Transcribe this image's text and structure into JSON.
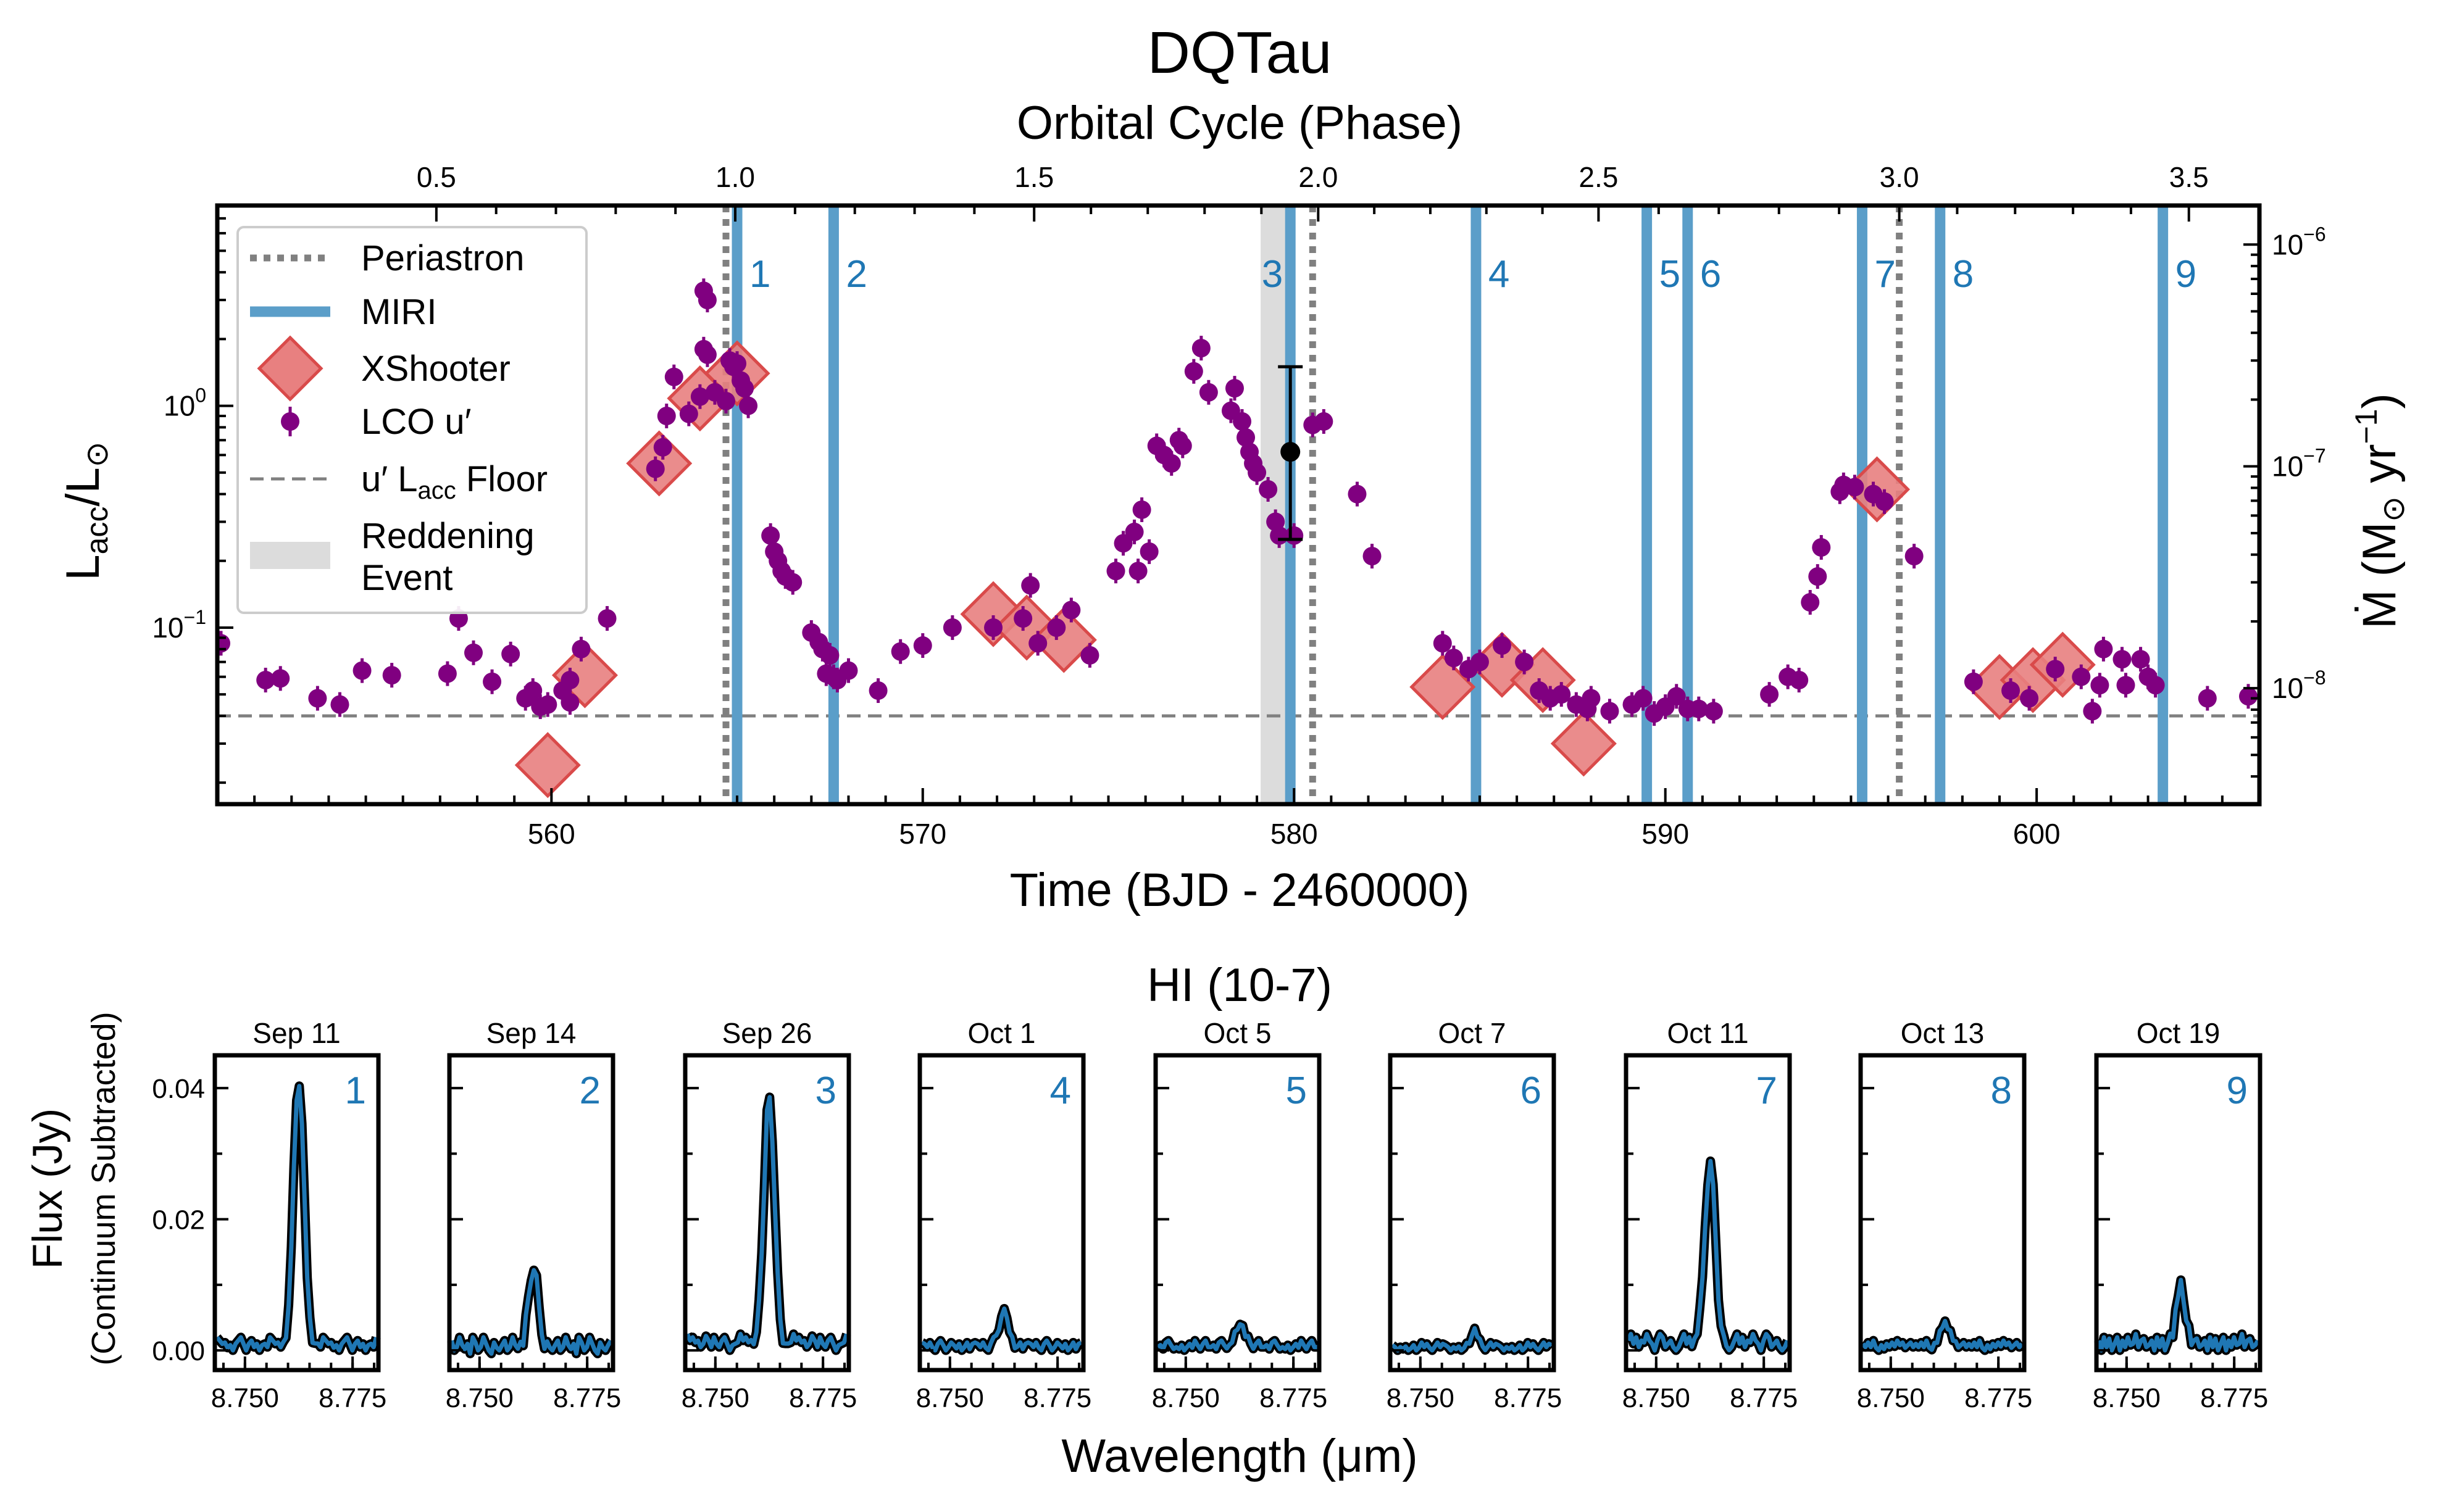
{
  "figure": {
    "title": "DQTau",
    "top_axis_label": "Orbital Cycle (Phase)",
    "bottom_axis_label": "Time (BJD - 2460000)",
    "left_axis_label_main": "L",
    "left_axis_label_sub1": "acc",
    "left_axis_label_mid": "/L",
    "left_axis_label_sub2": "⊙",
    "right_axis_label": "Ṁ (M⊙ yr−1)",
    "right_axis_label_parts": [
      "Ṁ (M",
      "⊙",
      " yr",
      "−1",
      ")"
    ],
    "lower_title": "HI (10-7)",
    "lower_ylabel": "Flux (Jy)",
    "lower_ylabel_sub": "(Continuum Subtracted)",
    "lower_xlabel": "Wavelength (μm)"
  },
  "colors": {
    "lco": "#800080",
    "xshooter_fill": "#e88080",
    "xshooter_edge": "#d94a4a",
    "miri": "#5b9ec9",
    "miri_text": "#1f77b4",
    "periastron": "#808080",
    "floor": "#808080",
    "reddening": "#dcdcdc",
    "spectrum_outline": "#000000",
    "spectrum_line": "#1f77b4"
  },
  "legend": {
    "placement": "upper-left",
    "entries": [
      {
        "id": "periastron",
        "label": "Periastron"
      },
      {
        "id": "miri",
        "label": "MIRI"
      },
      {
        "id": "xshooter",
        "label": "XShooter"
      },
      {
        "id": "lco",
        "label": "LCO u′"
      },
      {
        "id": "floor",
        "label": "u′ L",
        "label_sub": "acc",
        "label_tail": " Floor"
      },
      {
        "id": "reddening",
        "label": "Reddening",
        "label2": "Event"
      }
    ]
  },
  "chart_data": [
    {
      "type": "scatter",
      "title": "DQTau",
      "xlabel": "Time (BJD - 2460000)",
      "ylabel": "Lacc/L⊙",
      "y2label": "Ṁ (M⊙ yr−1)",
      "x2label": "Orbital Cycle (Phase)",
      "xlim": [
        551,
        606
      ],
      "ylim": [
        0.016,
        8
      ],
      "yscale": "log",
      "y2lim": [
        3e-09,
        1.5e-06
      ],
      "y2scale": "log",
      "xticks": [
        560,
        570,
        580,
        590,
        600
      ],
      "yticks": [
        {
          "v": 0.1,
          "label": "10",
          "exp": "−1"
        },
        {
          "v": 1,
          "label": "10",
          "exp": "0"
        }
      ],
      "y2ticks": [
        {
          "v": 1e-08,
          "label": "10",
          "exp": "−8"
        },
        {
          "v": 1e-07,
          "label": "10",
          "exp": "−7"
        },
        {
          "v": 1e-06,
          "label": "10",
          "exp": "−6"
        }
      ],
      "x2ticks": [
        {
          "t": 556.9,
          "label": "0.5"
        },
        {
          "t": 564.95,
          "label": "1.0"
        },
        {
          "t": 573.0,
          "label": "1.5"
        },
        {
          "t": 580.65,
          "label": "2.0"
        },
        {
          "t": 588.2,
          "label": "2.5"
        },
        {
          "t": 596.3,
          "label": "3.0"
        },
        {
          "t": 604.1,
          "label": "3.5"
        }
      ],
      "periastron_times": [
        564.7,
        580.5,
        596.3
      ],
      "miri_epochs": [
        {
          "label": "1",
          "t": 565.0
        },
        {
          "label": "2",
          "t": 567.6
        },
        {
          "label": "3",
          "t": 579.9
        },
        {
          "label": "4",
          "t": 584.9
        },
        {
          "label": "5",
          "t": 589.5
        },
        {
          "label": "6",
          "t": 590.6
        },
        {
          "label": "7",
          "t": 595.3
        },
        {
          "label": "8",
          "t": 597.4
        },
        {
          "label": "9",
          "t": 603.4
        }
      ],
      "reddening_event": [
        579.1,
        579.9
      ],
      "lacc_floor": 0.04,
      "xshooter": [
        [
          559.9,
          0.024
        ],
        [
          560.9,
          0.061
        ],
        [
          562.9,
          0.55
        ],
        [
          564.0,
          1.08
        ],
        [
          565.0,
          1.4
        ],
        [
          571.9,
          0.115
        ],
        [
          572.8,
          0.1
        ],
        [
          573.8,
          0.088
        ],
        [
          584.0,
          0.054
        ],
        [
          585.6,
          0.068
        ],
        [
          586.7,
          0.058
        ],
        [
          587.8,
          0.03
        ],
        [
          595.7,
          0.42
        ],
        [
          599.0,
          0.054
        ],
        [
          599.9,
          0.058
        ],
        [
          600.7,
          0.068
        ]
      ],
      "lco": [
        [
          551.1,
          0.085
        ],
        [
          552.3,
          0.058
        ],
        [
          552.7,
          0.059
        ],
        [
          553.7,
          0.048
        ],
        [
          554.3,
          0.045
        ],
        [
          554.9,
          0.064
        ],
        [
          555.7,
          0.061
        ],
        [
          557.2,
          0.062
        ],
        [
          557.5,
          0.11
        ],
        [
          557.9,
          0.077
        ],
        [
          558.4,
          0.057
        ],
        [
          558.9,
          0.076
        ],
        [
          559.3,
          0.048
        ],
        [
          559.5,
          0.052
        ],
        [
          559.7,
          0.044
        ],
        [
          559.9,
          0.045
        ],
        [
          560.3,
          0.052
        ],
        [
          560.5,
          0.058
        ],
        [
          560.5,
          0.046
        ],
        [
          560.8,
          0.08
        ],
        [
          561.5,
          0.11
        ],
        [
          562.8,
          0.52
        ],
        [
          563.0,
          0.65
        ],
        [
          563.1,
          0.9
        ],
        [
          563.3,
          1.35
        ],
        [
          563.7,
          0.92
        ],
        [
          564.0,
          1.1
        ],
        [
          564.1,
          3.3
        ],
        [
          564.1,
          1.8
        ],
        [
          564.2,
          3.0
        ],
        [
          564.2,
          1.7
        ],
        [
          564.4,
          1.15
        ],
        [
          564.7,
          1.05
        ],
        [
          564.8,
          1.6
        ],
        [
          564.9,
          1.5
        ],
        [
          565.0,
          1.55
        ],
        [
          565.1,
          1.3
        ],
        [
          565.2,
          1.2
        ],
        [
          565.3,
          1.0
        ],
        [
          565.9,
          0.26
        ],
        [
          566.0,
          0.22
        ],
        [
          566.1,
          0.2
        ],
        [
          566.2,
          0.18
        ],
        [
          566.3,
          0.17
        ],
        [
          566.5,
          0.16
        ],
        [
          567.0,
          0.095
        ],
        [
          567.2,
          0.086
        ],
        [
          567.3,
          0.08
        ],
        [
          567.5,
          0.075
        ],
        [
          567.4,
          0.062
        ],
        [
          567.6,
          0.06
        ],
        [
          567.7,
          0.058
        ],
        [
          568.0,
          0.064
        ],
        [
          568.8,
          0.052
        ],
        [
          569.4,
          0.078
        ],
        [
          570.0,
          0.083
        ],
        [
          570.8,
          0.1
        ],
        [
          571.9,
          0.1
        ],
        [
          572.7,
          0.11
        ],
        [
          572.9,
          0.155
        ],
        [
          573.1,
          0.085
        ],
        [
          573.6,
          0.1
        ],
        [
          574.0,
          0.12
        ],
        [
          574.5,
          0.075
        ],
        [
          575.2,
          0.18
        ],
        [
          575.4,
          0.24
        ],
        [
          575.7,
          0.27
        ],
        [
          575.9,
          0.34
        ],
        [
          576.1,
          0.22
        ],
        [
          575.8,
          0.18
        ],
        [
          576.3,
          0.66
        ],
        [
          576.5,
          0.6
        ],
        [
          576.7,
          0.55
        ],
        [
          576.9,
          0.7
        ],
        [
          577.0,
          0.66
        ],
        [
          577.3,
          1.43
        ],
        [
          577.5,
          1.82
        ],
        [
          577.7,
          1.15
        ],
        [
          578.4,
          1.2
        ],
        [
          578.3,
          0.95
        ],
        [
          578.6,
          0.85
        ],
        [
          578.7,
          0.72
        ],
        [
          578.8,
          0.62
        ],
        [
          578.9,
          0.55
        ],
        [
          579.0,
          0.5
        ],
        [
          579.3,
          0.42
        ],
        [
          579.5,
          0.3
        ],
        [
          579.6,
          0.26
        ],
        [
          580.0,
          0.26
        ],
        [
          580.5,
          0.82
        ],
        [
          580.8,
          0.85
        ],
        [
          581.7,
          0.4
        ],
        [
          582.1,
          0.21
        ],
        [
          584.0,
          0.085
        ],
        [
          584.3,
          0.073
        ],
        [
          584.7,
          0.065
        ],
        [
          585.0,
          0.07
        ],
        [
          585.6,
          0.083
        ],
        [
          586.2,
          0.07
        ],
        [
          586.6,
          0.052
        ],
        [
          586.9,
          0.048
        ],
        [
          587.2,
          0.05
        ],
        [
          587.6,
          0.045
        ],
        [
          587.9,
          0.043
        ],
        [
          588.0,
          0.048
        ],
        [
          588.5,
          0.042
        ],
        [
          589.1,
          0.045
        ],
        [
          589.4,
          0.048
        ],
        [
          589.7,
          0.041
        ],
        [
          590.0,
          0.044
        ],
        [
          590.3,
          0.049
        ],
        [
          590.6,
          0.043
        ],
        [
          590.9,
          0.043
        ],
        [
          591.3,
          0.042
        ],
        [
          592.8,
          0.05
        ],
        [
          593.3,
          0.06
        ],
        [
          593.6,
          0.058
        ],
        [
          593.9,
          0.13
        ],
        [
          594.1,
          0.17
        ],
        [
          594.2,
          0.23
        ],
        [
          594.7,
          0.41
        ],
        [
          594.8,
          0.44
        ],
        [
          595.1,
          0.43
        ],
        [
          595.6,
          0.4
        ],
        [
          595.9,
          0.37
        ],
        [
          596.7,
          0.21
        ],
        [
          598.3,
          0.057
        ],
        [
          599.3,
          0.052
        ],
        [
          599.8,
          0.048
        ],
        [
          600.5,
          0.065
        ],
        [
          601.2,
          0.06
        ],
        [
          601.5,
          0.042
        ],
        [
          601.7,
          0.055
        ],
        [
          601.8,
          0.08
        ],
        [
          602.3,
          0.072
        ],
        [
          602.4,
          0.055
        ],
        [
          602.8,
          0.072
        ],
        [
          603.0,
          0.06
        ],
        [
          603.2,
          0.055
        ],
        [
          604.6,
          0.048
        ],
        [
          605.7,
          0.049
        ]
      ],
      "black_point": {
        "t": 579.9,
        "y": 0.62,
        "ylo": 0.25,
        "yhi": 1.5
      }
    },
    {
      "type": "line",
      "title": "HI (10-7)",
      "xlabel": "Wavelength (μm)",
      "ylabel": "Flux (Jy)",
      "xlim": [
        8.743,
        8.781
      ],
      "ylim": [
        -0.003,
        0.045
      ],
      "xticks": [
        {
          "v": 8.75,
          "label": "8.750"
        },
        {
          "v": 8.775,
          "label": "8.775"
        }
      ],
      "yticks": [
        {
          "v": 0.0,
          "label": "0.00"
        },
        {
          "v": 0.02,
          "label": "0.02"
        },
        {
          "v": 0.04,
          "label": "0.04"
        }
      ],
      "line_center": 8.7625,
      "panels": [
        {
          "date": "Sep 11",
          "label": "1",
          "peak": 0.0405,
          "width": 0.0012,
          "noise": [
            0.002,
            0.0015,
            0.001,
            0.0012,
            0.0004,
            0.0008,
            0.0,
            0.001,
            0.0015,
            0.002,
            0.001,
            0.0,
            0.001,
            0.0015,
            0.0005,
            0.001,
            0.0,
            0.0008,
            0.001,
            0.0005
          ]
        },
        {
          "date": "Sep 14",
          "label": "2",
          "peak": 0.0118,
          "width": 0.0011,
          "noise": [
            0.0015,
            0.0,
            0.0005,
            0.002,
            0.0008,
            0.0002,
            0.001,
            -0.0005,
            0.002,
            0.0012,
            0.0,
            0.0005,
            0.002,
            0.001,
            0.0,
            -0.0005,
            0.0012,
            0.0004,
            0.0,
            0.0008
          ]
        },
        {
          "date": "Sep 26",
          "label": "3",
          "peak": 0.0378,
          "width": 0.0012,
          "noise": [
            0.0025,
            0.0015,
            0.002,
            0.0012,
            0.0015,
            0.0005,
            0.001,
            0.0022,
            0.0015,
            0.0005,
            0.002,
            0.001,
            0.0005,
            0.0015,
            0.002,
            0.001,
            0.0,
            0.0008,
            0.001,
            0.0012
          ]
        },
        {
          "date": "Oct 1",
          "label": "4",
          "peak": 0.0052,
          "width": 0.0011,
          "noise": [
            0.0012,
            0.001,
            0.0005,
            0.0012,
            0.0004,
            0.0,
            0.001,
            0.0015,
            0.0008,
            0.0,
            0.0005,
            0.0012,
            0.0008,
            0.0003,
            0.001,
            0.0,
            0.0005,
            0.0012,
            0.0002,
            0.001
          ]
        },
        {
          "date": "Oct 5",
          "label": "5",
          "peak": 0.0035,
          "width": 0.0011,
          "noise": [
            0.0005,
            0.0008,
            0.0002,
            0.0012,
            0.0015,
            0.0008,
            0.0002,
            0.0005,
            0.0002,
            0.0008,
            0.0,
            0.0005,
            0.001,
            0.0004,
            0.0015,
            0.0008,
            0.0002,
            0.001,
            0.0015,
            0.0005
          ]
        },
        {
          "date": "Oct 7",
          "label": "6",
          "peak": 0.0022,
          "width": 0.0009,
          "noise": [
            0.0008,
            0.0005,
            0.0,
            0.0005,
            0.0002,
            0.0006,
            0.0,
            0.0003,
            0.0008,
            0.0,
            0.0004,
            0.0012,
            0.0005,
            0.001,
            0.0004,
            0.0,
            0.0006,
            0.0012,
            0.0005,
            0.001
          ]
        },
        {
          "date": "Oct 11",
          "label": "7",
          "peak": 0.0275,
          "width": 0.0012,
          "noise": [
            0.0015,
            0.0025,
            0.001,
            0.002,
            0.0005,
            0.0015,
            0.0012,
            0.0025,
            0.0015,
            0.001,
            0.0,
            0.0015,
            0.0025,
            0.002,
            0.0005,
            0.001,
            0.0015,
            0.0005,
            0.0,
            0.0005
          ]
        },
        {
          "date": "Oct 13",
          "label": "8",
          "peak": 0.0033,
          "width": 0.0011,
          "noise": [
            0.001,
            0.0005,
            0.0012,
            0.0005,
            0.0015,
            0.0004,
            0.0,
            0.0008,
            0.0002,
            0.001,
            0.0005,
            0.0012,
            0.0006,
            0.0015,
            0.0008,
            0.0012,
            0.0004,
            0.0008,
            0.0012,
            0.0005
          ]
        },
        {
          "date": "Oct 19",
          "label": "9",
          "peak": 0.0088,
          "width": 0.001,
          "noise": [
            0.0015,
            0.0,
            0.002,
            0.0005,
            0.0018,
            0.0,
            0.001,
            0.002,
            0.0,
            0.0015,
            0.0005,
            0.002,
            0.0008,
            0.001,
            0.0025,
            0.0005,
            0.0015,
            0.0018,
            0.0005,
            0.0008
          ]
        }
      ]
    }
  ]
}
